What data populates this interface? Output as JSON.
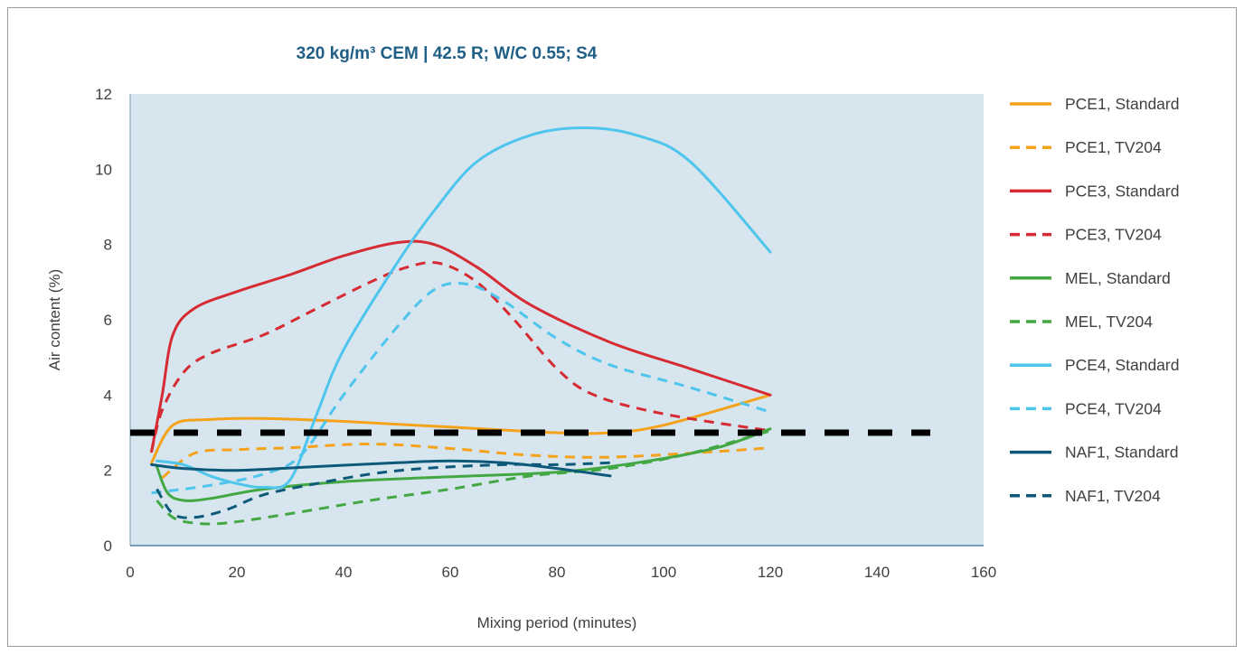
{
  "chart_data": {
    "type": "line",
    "title": "320 kg/m³ CEM | 42.5 R; W/C 0.55; S4",
    "xlabel": "Mixing period (minutes)",
    "ylabel": "Air content (%)",
    "xlim": [
      0,
      160
    ],
    "ylim": [
      0,
      12
    ],
    "xticks": [
      "0",
      "20",
      "40",
      "60",
      "80",
      "100",
      "120",
      "140",
      "160"
    ],
    "yticks": [
      "0",
      "2",
      "4",
      "6",
      "8",
      "10",
      "12"
    ],
    "plot_background": "#d7e5ee",
    "legend_position": "right",
    "reference_line": {
      "y": 3,
      "x": [
        0,
        150
      ],
      "color": "#000000",
      "style": "dashed"
    },
    "series": [
      {
        "name": "PCE1, Standard",
        "color": "#f5a21b",
        "style": "solid",
        "points": [
          [
            4,
            2.2
          ],
          [
            8,
            3.2
          ],
          [
            15,
            3.35
          ],
          [
            25,
            3.38
          ],
          [
            40,
            3.3
          ],
          [
            60,
            3.15
          ],
          [
            80,
            3.0
          ],
          [
            90,
            3.0
          ],
          [
            100,
            3.2
          ],
          [
            120,
            4.0
          ]
        ]
      },
      {
        "name": "PCE1, TV204",
        "color": "#f5a21b",
        "style": "dashed",
        "points": [
          [
            6,
            1.8
          ],
          [
            12,
            2.45
          ],
          [
            20,
            2.55
          ],
          [
            30,
            2.6
          ],
          [
            45,
            2.7
          ],
          [
            60,
            2.58
          ],
          [
            75,
            2.4
          ],
          [
            90,
            2.35
          ],
          [
            110,
            2.5
          ],
          [
            120,
            2.6
          ]
        ]
      },
      {
        "name": "PCE3, Standard",
        "color": "#d62b33",
        "style": "solid",
        "points": [
          [
            4,
            2.5
          ],
          [
            6,
            4.0
          ],
          [
            8,
            5.6
          ],
          [
            12,
            6.3
          ],
          [
            20,
            6.75
          ],
          [
            30,
            7.2
          ],
          [
            40,
            7.7
          ],
          [
            50,
            8.05
          ],
          [
            57,
            8.0
          ],
          [
            65,
            7.4
          ],
          [
            75,
            6.4
          ],
          [
            90,
            5.4
          ],
          [
            105,
            4.7
          ],
          [
            120,
            4.0
          ]
        ]
      },
      {
        "name": "PCE3, TV204",
        "color": "#d62b33",
        "style": "dashed",
        "points": [
          [
            4,
            2.5
          ],
          [
            6,
            3.6
          ],
          [
            10,
            4.6
          ],
          [
            15,
            5.1
          ],
          [
            25,
            5.6
          ],
          [
            35,
            6.3
          ],
          [
            45,
            7.0
          ],
          [
            52,
            7.4
          ],
          [
            58,
            7.5
          ],
          [
            65,
            7.0
          ],
          [
            72,
            6.0
          ],
          [
            80,
            4.7
          ],
          [
            87,
            4.0
          ],
          [
            100,
            3.5
          ],
          [
            120,
            3.05
          ]
        ]
      },
      {
        "name": "MEL, Standard",
        "color": "#43a843",
        "style": "solid",
        "points": [
          [
            5,
            2.1
          ],
          [
            7,
            1.4
          ],
          [
            10,
            1.2
          ],
          [
            15,
            1.25
          ],
          [
            25,
            1.5
          ],
          [
            40,
            1.7
          ],
          [
            60,
            1.83
          ],
          [
            80,
            1.95
          ],
          [
            95,
            2.2
          ],
          [
            110,
            2.6
          ],
          [
            120,
            3.1
          ]
        ]
      },
      {
        "name": "MEL, TV204",
        "color": "#43a843",
        "style": "dashed",
        "points": [
          [
            5,
            1.2
          ],
          [
            8,
            0.75
          ],
          [
            12,
            0.6
          ],
          [
            18,
            0.6
          ],
          [
            30,
            0.85
          ],
          [
            45,
            1.2
          ],
          [
            60,
            1.5
          ],
          [
            75,
            1.85
          ],
          [
            90,
            2.05
          ],
          [
            105,
            2.45
          ],
          [
            120,
            3.05
          ]
        ]
      },
      {
        "name": "PCE4, Standard",
        "color": "#4ec5ec",
        "style": "solid",
        "points": [
          [
            5,
            2.25
          ],
          [
            10,
            2.15
          ],
          [
            15,
            1.85
          ],
          [
            20,
            1.65
          ],
          [
            25,
            1.55
          ],
          [
            30,
            1.75
          ],
          [
            35,
            3.5
          ],
          [
            40,
            5.2
          ],
          [
            50,
            7.5
          ],
          [
            57,
            8.9
          ],
          [
            65,
            10.2
          ],
          [
            75,
            10.9
          ],
          [
            85,
            11.1
          ],
          [
            95,
            10.9
          ],
          [
            105,
            10.2
          ],
          [
            120,
            7.8
          ]
        ]
      },
      {
        "name": "PCE4, TV204",
        "color": "#4ec5ec",
        "style": "dashed",
        "points": [
          [
            4,
            1.4
          ],
          [
            15,
            1.6
          ],
          [
            25,
            1.9
          ],
          [
            32,
            2.4
          ],
          [
            40,
            4.0
          ],
          [
            50,
            5.8
          ],
          [
            57,
            6.8
          ],
          [
            63,
            6.95
          ],
          [
            70,
            6.5
          ],
          [
            80,
            5.5
          ],
          [
            90,
            4.8
          ],
          [
            105,
            4.2
          ],
          [
            120,
            3.55
          ]
        ]
      },
      {
        "name": "NAF1, Standard",
        "color": "#0d5979",
        "style": "solid",
        "points": [
          [
            4,
            2.15
          ],
          [
            10,
            2.05
          ],
          [
            20,
            2.0
          ],
          [
            35,
            2.1
          ],
          [
            50,
            2.2
          ],
          [
            60,
            2.25
          ],
          [
            70,
            2.2
          ],
          [
            80,
            2.05
          ],
          [
            90,
            1.85
          ]
        ]
      },
      {
        "name": "NAF1, TV204",
        "color": "#0d5979",
        "style": "dashed",
        "points": [
          [
            5,
            1.5
          ],
          [
            8,
            0.85
          ],
          [
            12,
            0.75
          ],
          [
            18,
            0.95
          ],
          [
            25,
            1.35
          ],
          [
            35,
            1.65
          ],
          [
            45,
            1.9
          ],
          [
            55,
            2.05
          ],
          [
            70,
            2.15
          ],
          [
            80,
            2.15
          ],
          [
            90,
            2.2
          ]
        ]
      }
    ]
  }
}
